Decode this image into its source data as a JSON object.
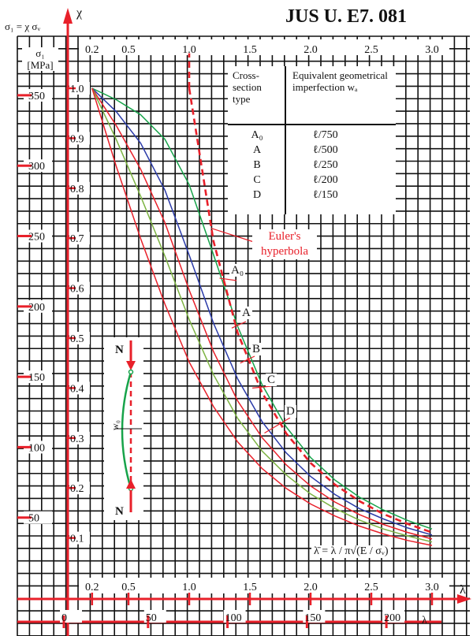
{
  "header": {
    "title": "JUS U. E7. 081"
  },
  "axis_labels": {
    "chi": "χ",
    "sigma_def": "σ₁ = χ σᵥ",
    "sigma_unit_line1": "σ₁",
    "sigma_unit_line2": "[MPa]",
    "lambda_bar": "λ̄",
    "lambda": "λ"
  },
  "legend": {
    "col1_header": "Cross-section type",
    "col2_header": "Equivalent geometrical imperfection wₐ",
    "rows": [
      {
        "type": "A₀",
        "imperfection": "ℓ/750"
      },
      {
        "type": "A",
        "imperfection": "ℓ/500"
      },
      {
        "type": "B",
        "imperfection": "ℓ/250"
      },
      {
        "type": "C",
        "imperfection": "ℓ/200"
      },
      {
        "type": "D",
        "imperfection": "ℓ/150"
      }
    ]
  },
  "euler_label": "Euler's hyperbola",
  "curve_labels": [
    "A₀",
    "A",
    "B",
    "C",
    "D"
  ],
  "formula": "λ̄ = λ / π√(E / σᵥ)",
  "sketch": {
    "force_top": "N",
    "force_bottom": "N",
    "w0": "w₀"
  },
  "colors": {
    "grid": "#111111",
    "axis_red": "#e8202a",
    "A0": "#17a34a",
    "A": "#2a3aa8",
    "B": "#e8202a",
    "C": "#7cb342",
    "D": "#e8202a",
    "euler": "#e8202a"
  },
  "chart_data": {
    "type": "line",
    "title": "JUS U. E7. 081",
    "x_ticks_top": [
      "0.2",
      "0.5",
      "1.0",
      "1.5",
      "2.0",
      "2.5",
      "3.0"
    ],
    "x_ticks_bottom": [
      "0.2",
      "0.5",
      "1.0",
      "1.5",
      "2.0",
      "2.5",
      "3.0"
    ],
    "y_ticks": [
      "1.0",
      "0.9",
      "0.8",
      "0.7",
      "0.6",
      "0.5",
      "0.4",
      "0.3",
      "0.2",
      "0.1"
    ],
    "sigma_ticks": [
      "350",
      "300",
      "250",
      "200",
      "150",
      "100",
      "50"
    ],
    "lambda_ticks": [
      "0",
      "50",
      "100",
      "150",
      "200"
    ],
    "xlim": [
      0,
      3
    ],
    "ylim": [
      0,
      1.05
    ],
    "series": [
      {
        "name": "A₀",
        "alpha": 0.125,
        "x": [
          0.2,
          0.4,
          0.6,
          0.8,
          1.0,
          1.2,
          1.4,
          1.6,
          1.8,
          2.0,
          2.2,
          2.4,
          2.6,
          2.8,
          3.0
        ],
        "values": [
          1.0,
          0.977,
          0.947,
          0.898,
          0.807,
          0.667,
          0.523,
          0.407,
          0.322,
          0.261,
          0.216,
          0.182,
          0.156,
          0.135,
          0.118
        ]
      },
      {
        "name": "A",
        "alpha": 0.206,
        "x": [
          0.2,
          0.4,
          0.6,
          0.8,
          1.0,
          1.2,
          1.4,
          1.6,
          1.8,
          2.0,
          2.2,
          2.4,
          2.6,
          2.8,
          3.0
        ],
        "values": [
          1.0,
          0.953,
          0.89,
          0.796,
          0.666,
          0.53,
          0.418,
          0.333,
          0.27,
          0.223,
          0.187,
          0.159,
          0.138,
          0.12,
          0.106
        ]
      },
      {
        "name": "B",
        "alpha": 0.339,
        "x": [
          0.2,
          0.4,
          0.6,
          0.8,
          1.0,
          1.2,
          1.4,
          1.6,
          1.8,
          2.0,
          2.2,
          2.4,
          2.6,
          2.8,
          3.0
        ],
        "values": [
          1.0,
          0.925,
          0.838,
          0.731,
          0.596,
          0.473,
          0.374,
          0.301,
          0.246,
          0.204,
          0.172,
          0.147,
          0.127,
          0.111,
          0.098
        ]
      },
      {
        "name": "C",
        "alpha": 0.489,
        "x": [
          0.2,
          0.4,
          0.6,
          0.8,
          1.0,
          1.2,
          1.4,
          1.6,
          1.8,
          2.0,
          2.2,
          2.4,
          2.6,
          2.8,
          3.0
        ],
        "values": [
          1.0,
          0.897,
          0.784,
          0.664,
          0.537,
          0.427,
          0.339,
          0.274,
          0.226,
          0.188,
          0.159,
          0.136,
          0.118,
          0.104,
          0.092
        ]
      },
      {
        "name": "D",
        "alpha": 0.76,
        "x": [
          0.2,
          0.4,
          0.6,
          0.8,
          1.0,
          1.2,
          1.4,
          1.6,
          1.8,
          2.0,
          2.2,
          2.4,
          2.6,
          2.8,
          3.0
        ],
        "values": [
          1.0,
          0.843,
          0.699,
          0.568,
          0.452,
          0.363,
          0.292,
          0.239,
          0.199,
          0.168,
          0.144,
          0.124,
          0.108,
          0.095,
          0.085
        ]
      },
      {
        "name": "Euler's hyperbola",
        "x": [
          1.0,
          1.2,
          1.4,
          1.6,
          1.8,
          2.0,
          2.2,
          2.4,
          2.6,
          2.8,
          3.0
        ],
        "values": [
          1.0,
          0.694,
          0.51,
          0.391,
          0.309,
          0.25,
          0.207,
          0.174,
          0.148,
          0.128,
          0.111
        ]
      }
    ]
  }
}
